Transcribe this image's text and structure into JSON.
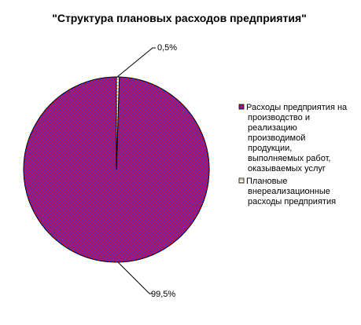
{
  "chart_data": {
    "type": "pie",
    "title": "\"Структура плановых расходов предприятия\"",
    "slices": [
      {
        "name": "Расходы предприятия на производство и реализацию производимой продукции, выполняемых работ, оказываемых услуг",
        "name_lines": [
          "Расходы предприятия на",
          "производство и",
          "реализацию",
          "производимой",
          "продукции,",
          "выполняемых работ,",
          "оказываемых услуг"
        ],
        "value": 99.5,
        "label": "99,5%",
        "color": "#ff0000",
        "pattern_color": "#3333ff"
      },
      {
        "name": "Плановые внереализационные расходы предприятия",
        "name_lines": [
          "Плановые",
          "внереализационные",
          "расходы предприятия"
        ],
        "value": 0.5,
        "label": "0,5%",
        "color": "#ffffff",
        "pattern_color": "#f1e3c5"
      }
    ],
    "legend_position": "right",
    "grid": false
  }
}
